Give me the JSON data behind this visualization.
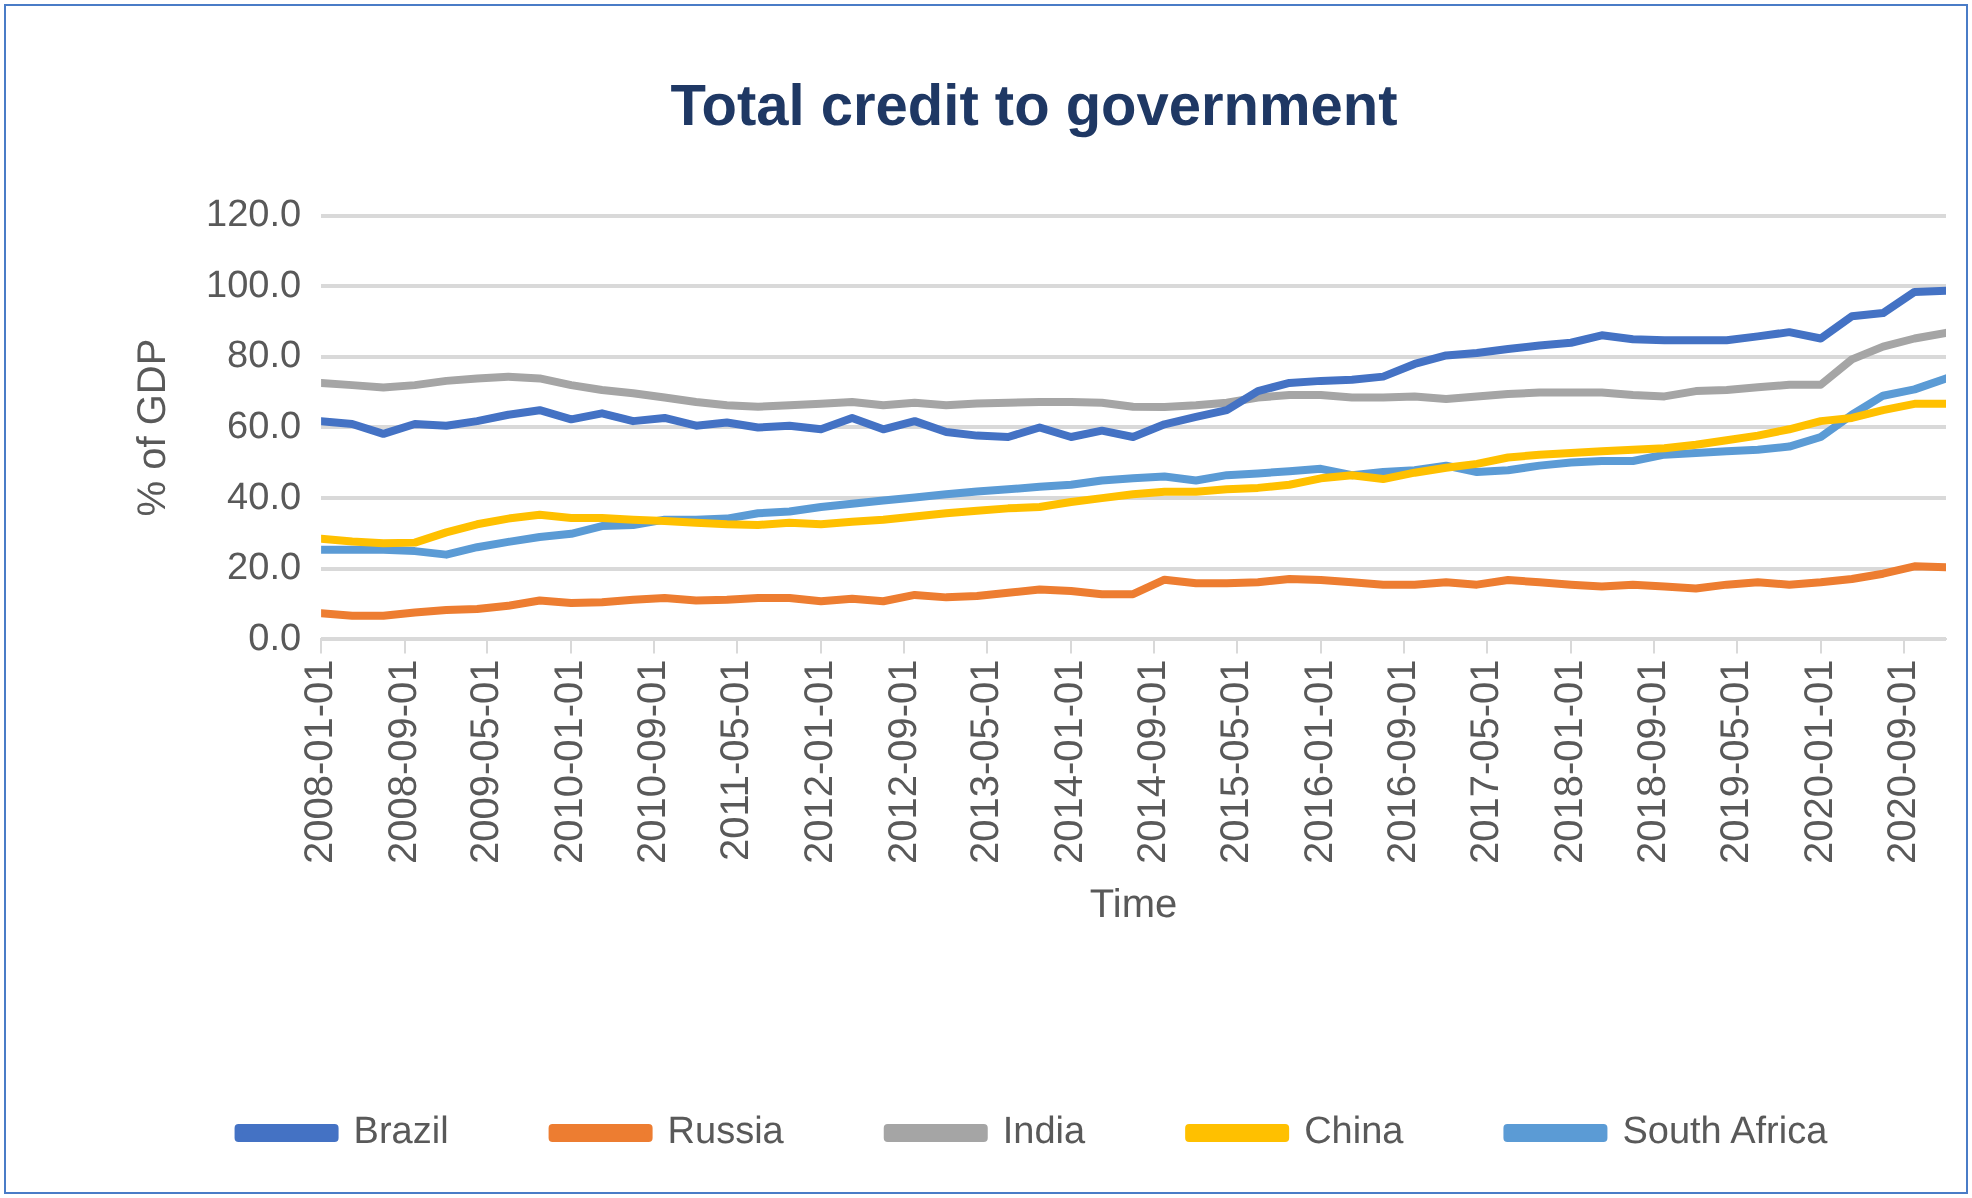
{
  "chart_data": {
    "type": "line",
    "title": "Total credit to government",
    "xlabel": "Time",
    "ylabel": "% of GDP",
    "x": [
      "2008-01-01",
      "2008-04-01",
      "2008-07-01",
      "2008-10-01",
      "2009-01-01",
      "2009-04-01",
      "2009-07-01",
      "2009-10-01",
      "2010-01-01",
      "2010-04-01",
      "2010-07-01",
      "2010-10-01",
      "2011-01-01",
      "2011-04-01",
      "2011-07-01",
      "2011-10-01",
      "2012-01-01",
      "2012-04-01",
      "2012-07-01",
      "2012-10-01",
      "2013-01-01",
      "2013-04-01",
      "2013-07-01",
      "2013-10-01",
      "2014-01-01",
      "2014-04-01",
      "2014-07-01",
      "2014-10-01",
      "2015-01-01",
      "2015-04-01",
      "2015-07-01",
      "2015-10-01",
      "2016-01-01",
      "2016-04-01",
      "2016-07-01",
      "2016-10-01",
      "2017-01-01",
      "2017-04-01",
      "2017-07-01",
      "2017-10-01",
      "2018-01-01",
      "2018-04-01",
      "2018-07-01",
      "2018-10-01",
      "2019-01-01",
      "2019-04-01",
      "2019-07-01",
      "2019-10-01",
      "2020-01-01",
      "2020-04-01",
      "2020-07-01",
      "2020-10-01",
      "2021-01-01"
    ],
    "series": [
      {
        "name": "Brazil",
        "color": "#4472c4",
        "values": [
          61.8,
          61,
          58.2,
          61,
          60.5,
          61.8,
          63.6,
          64.9,
          62.3,
          64,
          61.8,
          62.7,
          60.5,
          61.4,
          60,
          60.5,
          59.5,
          62.7,
          59.5,
          61.8,
          58.7,
          57.7,
          57.3,
          60,
          57.3,
          59.1,
          57.3,
          60.9,
          63,
          64.9,
          70.3,
          72.6,
          73.2,
          73.5,
          74.4,
          78,
          80.4,
          81.1,
          82.2,
          83.2,
          84,
          86.1,
          85,
          84.7,
          84.7,
          84.7,
          85.8,
          87,
          85.2,
          91.5,
          92.4,
          98.4,
          98.7
        ]
      },
      {
        "name": "Russia",
        "color": "#ed7d31",
        "values": [
          7.4,
          6.7,
          6.7,
          7.6,
          8.3,
          8.6,
          9.5,
          11,
          10.3,
          10.5,
          11.2,
          11.7,
          11,
          11.2,
          11.7,
          11.7,
          10.8,
          11.5,
          10.8,
          12.6,
          11.9,
          12.3,
          13.2,
          14.1,
          13.7,
          12.8,
          12.8,
          16.9,
          15.9,
          15.9,
          16.2,
          17.1,
          16.8,
          16.2,
          15.5,
          15.5,
          16.2,
          15.5,
          16.8,
          16.2,
          15.5,
          15,
          15.5,
          15,
          14.4,
          15.5,
          16.2,
          15.5,
          16.2,
          17.1,
          18.6,
          20.7,
          20.4
        ]
      },
      {
        "name": "India",
        "color": "#a5a5a5",
        "values": [
          72.6,
          72,
          71.3,
          72,
          73.2,
          73.9,
          74.4,
          73.9,
          72,
          70.6,
          69.7,
          68.5,
          67.2,
          66.3,
          65.9,
          66.3,
          66.7,
          67.2,
          66.3,
          67,
          66.3,
          66.8,
          67,
          67.2,
          67.2,
          67,
          65.9,
          65.8,
          66.3,
          67,
          68.5,
          69.2,
          69.2,
          68.5,
          68.5,
          68.8,
          68.1,
          68.8,
          69.5,
          69.9,
          69.9,
          69.9,
          69.2,
          68.8,
          70.3,
          70.6,
          71.4,
          72.1,
          72.1,
          79.3,
          82.9,
          85.2,
          86.8
        ]
      },
      {
        "name": "China",
        "color": "#ffc000",
        "values": [
          28.5,
          27.7,
          27.2,
          27.4,
          30.3,
          32.6,
          34.2,
          35.3,
          34.4,
          34.4,
          33.9,
          33.5,
          33,
          32.6,
          32.4,
          33,
          32.6,
          33.3,
          33.9,
          34.8,
          35.7,
          36.4,
          37.1,
          37.5,
          38.9,
          40,
          41.1,
          41.8,
          41.8,
          42.5,
          42.9,
          43.8,
          45.6,
          46.5,
          45.4,
          47.2,
          48.6,
          49.7,
          51.5,
          52.3,
          52.8,
          53.3,
          53.7,
          54.1,
          55.1,
          56.4,
          57.7,
          59.5,
          61.8,
          62.7,
          64.9,
          66.7,
          66.7
        ]
      },
      {
        "name": "South Africa",
        "color": "#5b9bd5",
        "values": [
          25.4,
          25.4,
          25.4,
          25,
          24,
          26.1,
          27.6,
          29,
          29.9,
          32.1,
          32.4,
          33.9,
          33.9,
          34.2,
          35.7,
          36.2,
          37.5,
          38.4,
          39.3,
          40.2,
          41.1,
          41.9,
          42.5,
          43.2,
          43.8,
          45,
          45.6,
          46.1,
          45,
          46.5,
          47,
          47.6,
          48.3,
          46.5,
          47.4,
          47.9,
          49.2,
          47.4,
          47.9,
          49.2,
          50.1,
          50.5,
          50.5,
          52.3,
          52.8,
          53.3,
          53.7,
          54.6,
          57.3,
          63.6,
          69,
          70.8,
          73.9
        ]
      }
    ],
    "xlim": [
      "2008-01-01",
      "2021-01-01"
    ],
    "xticks": [
      "2008-01-01",
      "2008-09-01",
      "2009-05-01",
      "2010-01-01",
      "2010-09-01",
      "2011-05-01",
      "2012-01-01",
      "2012-09-01",
      "2013-05-01",
      "2014-01-01",
      "2014-09-01",
      "2015-05-01",
      "2016-01-01",
      "2016-09-01",
      "2017-05-01",
      "2018-01-01",
      "2018-09-01",
      "2019-05-01",
      "2020-01-01",
      "2020-09-01"
    ],
    "ylim": [
      0,
      120
    ],
    "yticks": [
      {
        "value": 0,
        "label": "0.0"
      },
      {
        "value": 20,
        "label": "20.0"
      },
      {
        "value": 40,
        "label": "40.0"
      },
      {
        "value": 60,
        "label": "60.0"
      },
      {
        "value": 80,
        "label": "80.0"
      },
      {
        "value": 100,
        "label": "100.0"
      },
      {
        "value": 120,
        "label": "120.0"
      }
    ],
    "grid": "y",
    "legend": "bottom",
    "marker": "none",
    "line_style": "solid"
  }
}
